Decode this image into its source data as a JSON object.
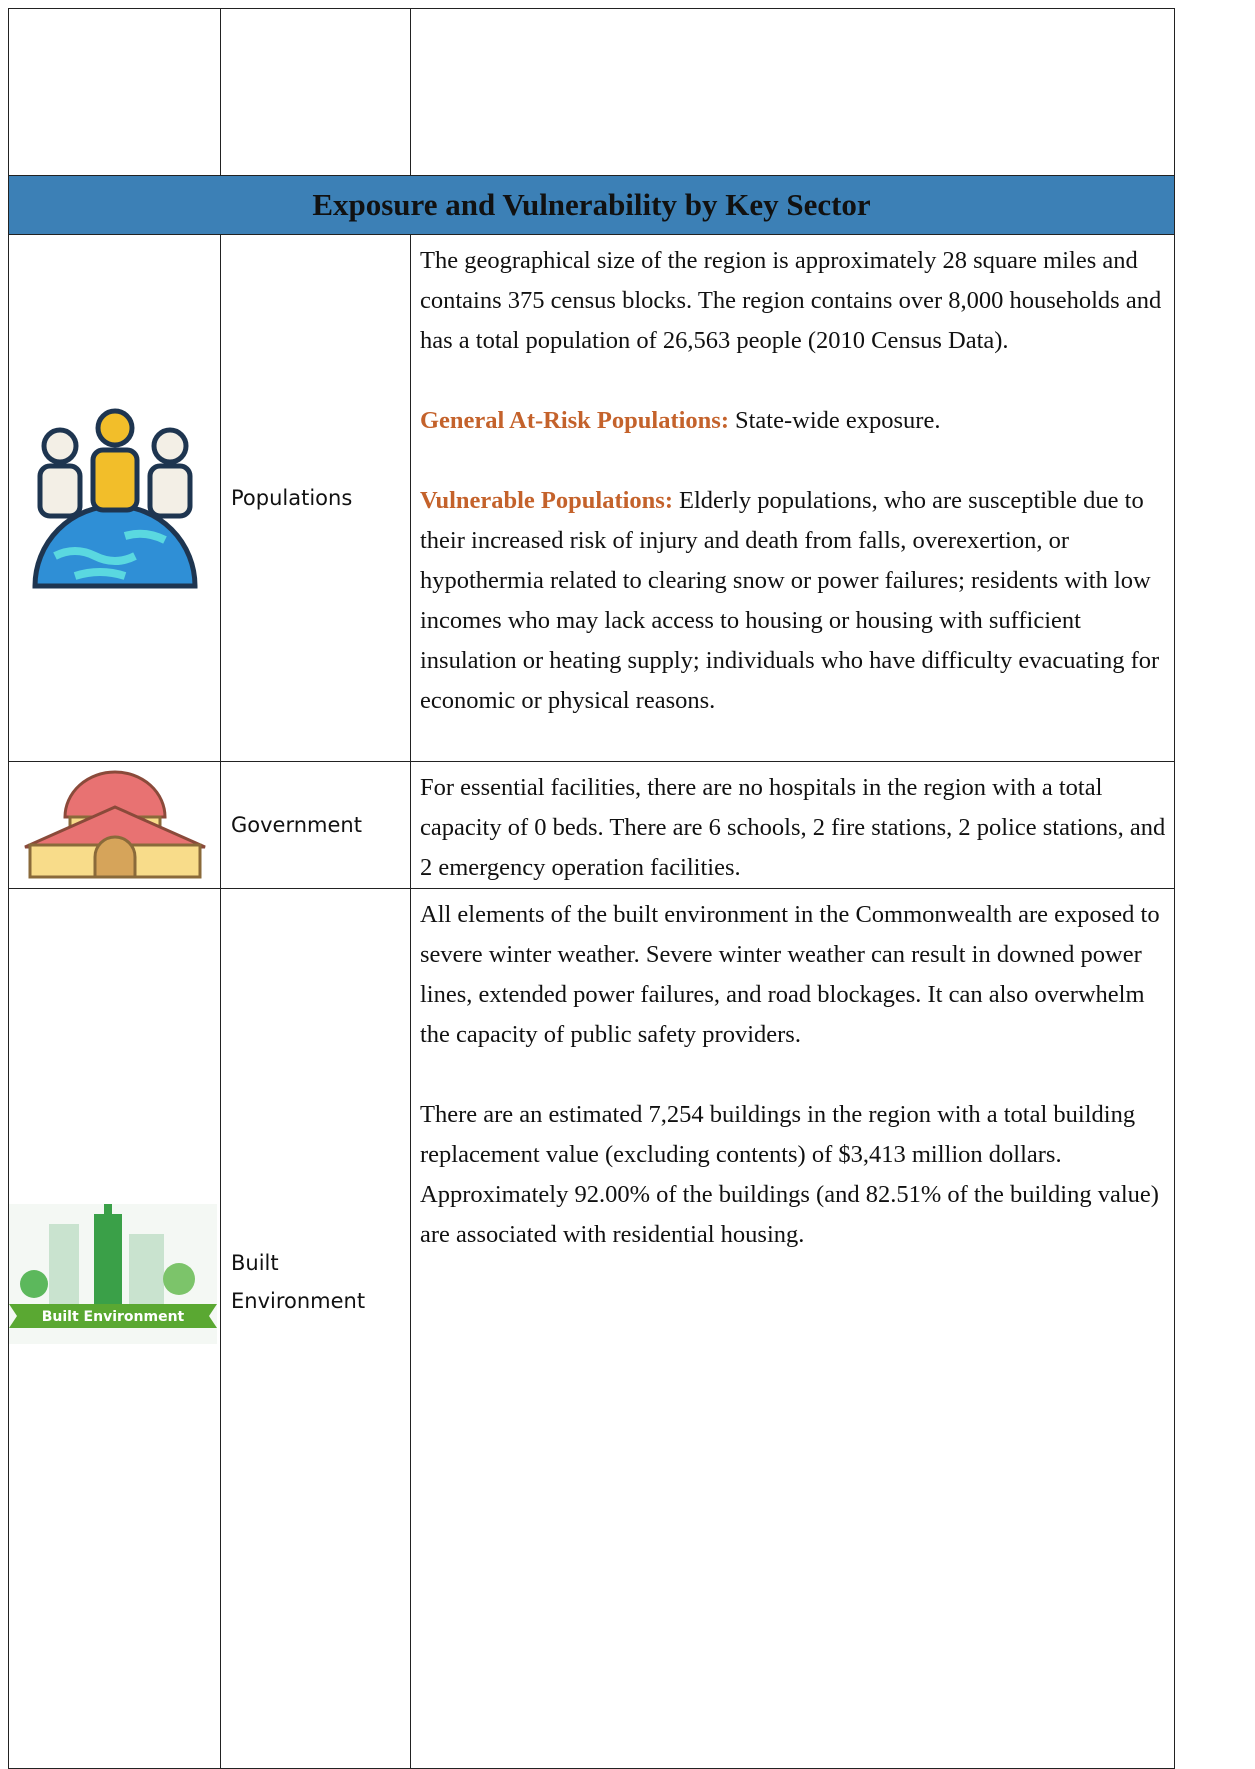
{
  "table": {
    "header": "Exposure and Vulnerability by Key Sector",
    "rows": [
      {
        "sector": "Populations",
        "paragraphs": [
          {
            "text": "The geographical size of the region is approximately 28 square miles and contains 375 census blocks. The region contains over 8,000 households and has a total population of 26,563 people (2010 Census Data)."
          },
          {
            "label": "General At-Risk Populations:",
            "text": "State-wide exposure."
          },
          {
            "label": "Vulnerable Populations:",
            "text": "Elderly populations, who are susceptible due to their increased risk of injury and death from falls, overexertion, or hypothermia related to clearing snow or power failures; residents with low incomes who may lack access to housing or housing with sufficient insulation or heating supply; individuals who have difficulty evacuating for economic or physical reasons."
          }
        ]
      },
      {
        "sector": "Government",
        "paragraphs": [
          {
            "text": "For essential facilities, there are no hospitals in the region with a total capacity of 0 beds.  There are 6 schools, 2 fire stations, 2 police stations, and 2 emergency operation facilities."
          }
        ]
      },
      {
        "sector": "Built Environment",
        "icon_text": "Built Environment",
        "paragraphs": [
          {
            "text": "All elements of the built environment in the Commonwealth are exposed to severe winter weather. Severe winter weather can result in downed power lines, extended power failures, and road blockages. It can also overwhelm the capacity of public safety providers."
          },
          {
            "text": "There are an estimated 7,254 buildings in the region with a total building replacement value (excluding contents) of $3,413 million dollars. Approximately 92.00% of the buildings (and 82.51% of the building value) are associated with residential housing."
          }
        ]
      }
    ]
  }
}
